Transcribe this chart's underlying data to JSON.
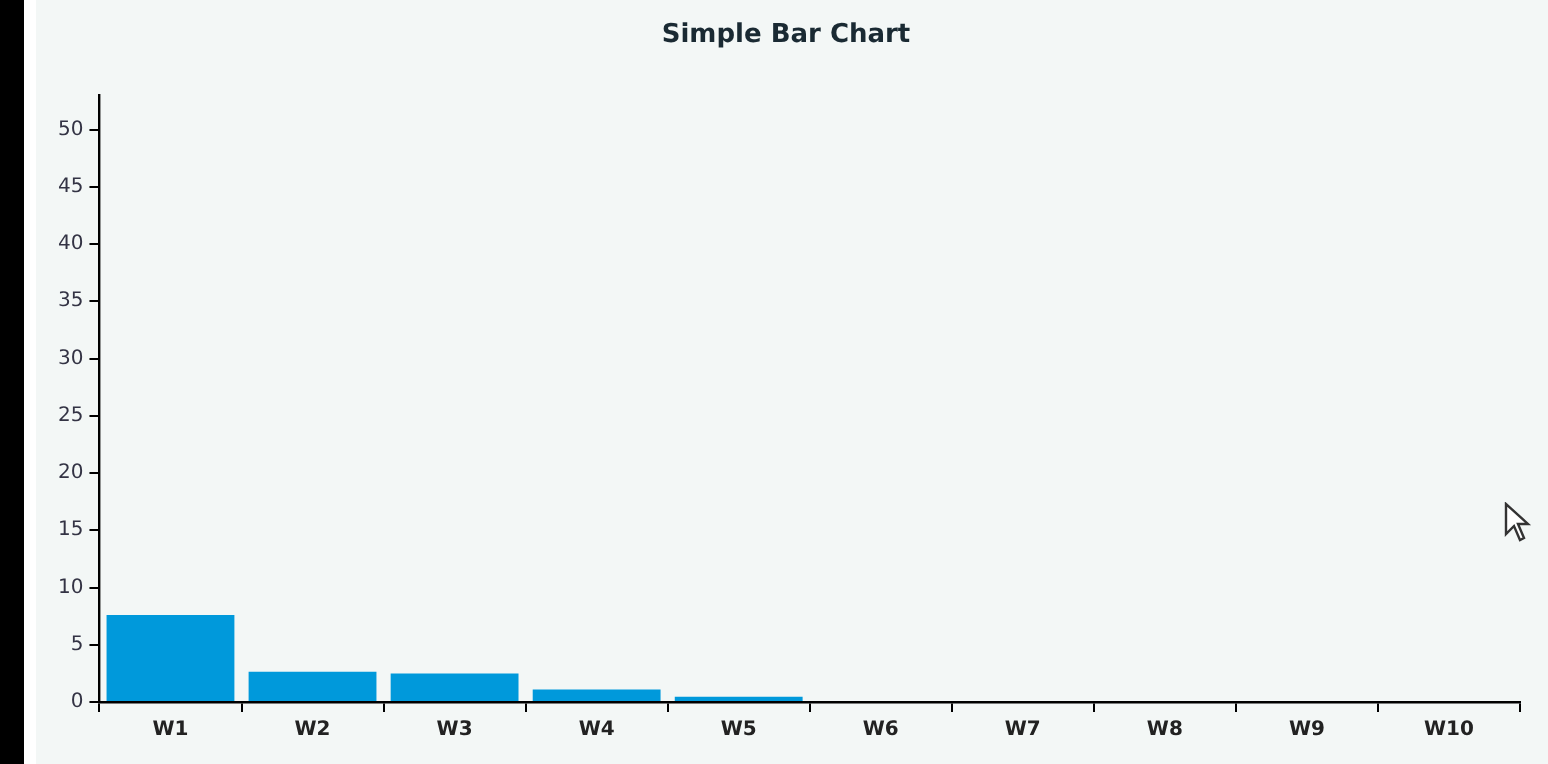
{
  "chart_data": {
    "type": "bar",
    "title": "Simple Bar Chart",
    "categories": [
      "W1",
      "W2",
      "W3",
      "W4",
      "W5",
      "W6",
      "W7",
      "W8",
      "W9",
      "W10"
    ],
    "values": [
      7.6,
      2.65,
      2.5,
      1.1,
      0.45,
      0,
      0,
      0,
      0,
      0
    ],
    "color": "#0099db",
    "ylim": [
      0,
      53
    ],
    "yticks": [
      0,
      5,
      10,
      15,
      20,
      25,
      30,
      35,
      40,
      45,
      50
    ],
    "grid": false,
    "legend": false
  }
}
